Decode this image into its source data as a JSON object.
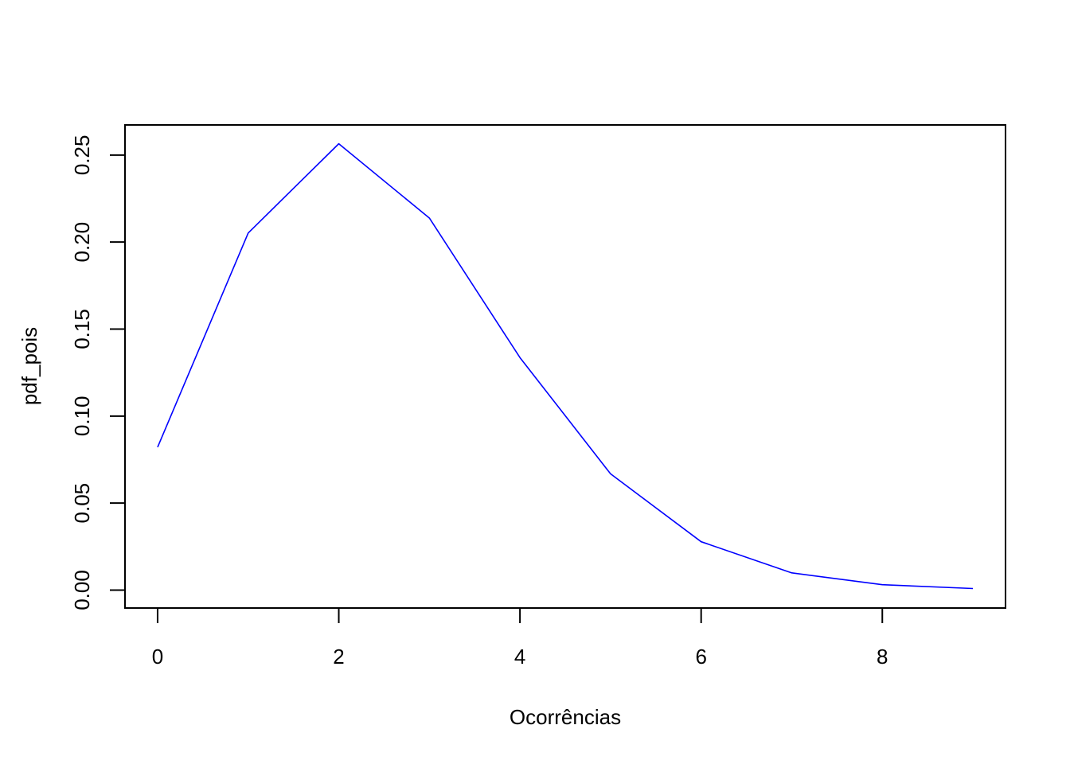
{
  "chart_data": {
    "type": "line",
    "title": "",
    "xlabel": "Ocorrências",
    "ylabel": "pdf_pois",
    "xlim": [
      -0.36,
      9.36
    ],
    "ylim": [
      -0.0103,
      0.2673
    ],
    "x_ticks": [
      0,
      2,
      4,
      6,
      8
    ],
    "x_tick_labels": [
      "0",
      "2",
      "4",
      "6",
      "8"
    ],
    "y_ticks": [
      0.0,
      0.05,
      0.1,
      0.15,
      0.2,
      0.25
    ],
    "y_tick_labels": [
      "0.00",
      "0.05",
      "0.10",
      "0.15",
      "0.20",
      "0.25"
    ],
    "grid": false,
    "legend": "none",
    "series": [
      {
        "color": "#0000ff",
        "x": [
          0,
          1,
          2,
          3,
          4,
          5,
          6,
          7,
          8,
          9
        ],
        "values": [
          0.0821,
          0.2052,
          0.2565,
          0.2138,
          0.1336,
          0.0668,
          0.0278,
          0.0099,
          0.0031,
          0.0009
        ]
      }
    ]
  }
}
